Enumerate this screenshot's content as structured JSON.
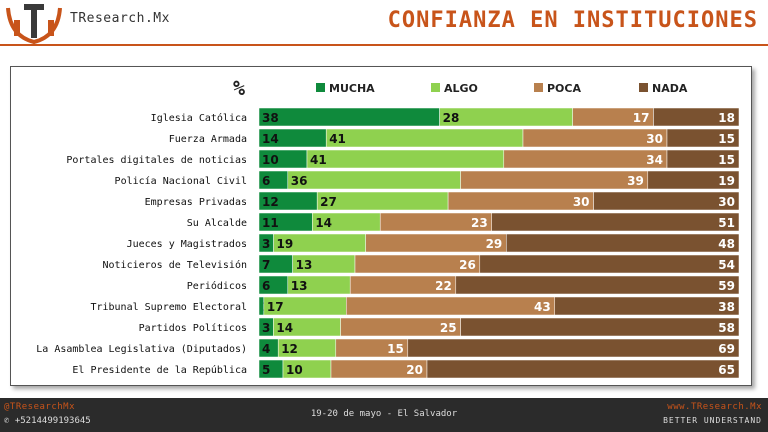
{
  "header": {
    "brand": "TResearch.Mx",
    "title": "CONFIANZA EN INSTITUCIONES"
  },
  "footer": {
    "social": "@TResearchMx",
    "phone": "+5214499193645",
    "date_location": "19-20 de mayo - El Salvador",
    "website": "www.TResearch.Mx",
    "tagline": "BETTER UNDERSTAND"
  },
  "colors": {
    "accent": "#c8541a",
    "mucha": "#0f8a3c",
    "algo": "#8fd14f",
    "poca": "#b8804e",
    "nada": "#7a5230"
  },
  "chart_data": {
    "type": "bar",
    "orientation": "horizontal",
    "stacked": true,
    "percent_label": "%",
    "legend_position": "top",
    "xlim": [
      0,
      100
    ],
    "categories": [
      "Iglesia Católica",
      "Fuerza Armada",
      "Portales digitales de noticias",
      "Policía Nacional Civil",
      "Empresas Privadas",
      "Su Alcalde",
      "Jueces y Magistrados",
      "Noticieros de Televisión",
      "Periódicos",
      "Tribunal Supremo Electoral",
      "Partidos Políticos",
      "La Asamblea Legislativa (Diputados)",
      "El Presidente de la República"
    ],
    "series": [
      {
        "name": "MUCHA",
        "values": [
          38,
          14,
          10,
          6,
          12,
          11,
          3,
          7,
          6,
          1,
          3,
          4,
          5
        ]
      },
      {
        "name": "ALGO",
        "values": [
          28,
          41,
          41,
          36,
          27,
          14,
          19,
          13,
          13,
          17,
          14,
          12,
          10
        ]
      },
      {
        "name": "POCA",
        "values": [
          17,
          30,
          34,
          39,
          30,
          23,
          29,
          26,
          22,
          43,
          25,
          15,
          20
        ]
      },
      {
        "name": "NADA",
        "values": [
          18,
          15,
          15,
          19,
          30,
          51,
          48,
          54,
          59,
          38,
          58,
          69,
          65
        ]
      }
    ]
  }
}
